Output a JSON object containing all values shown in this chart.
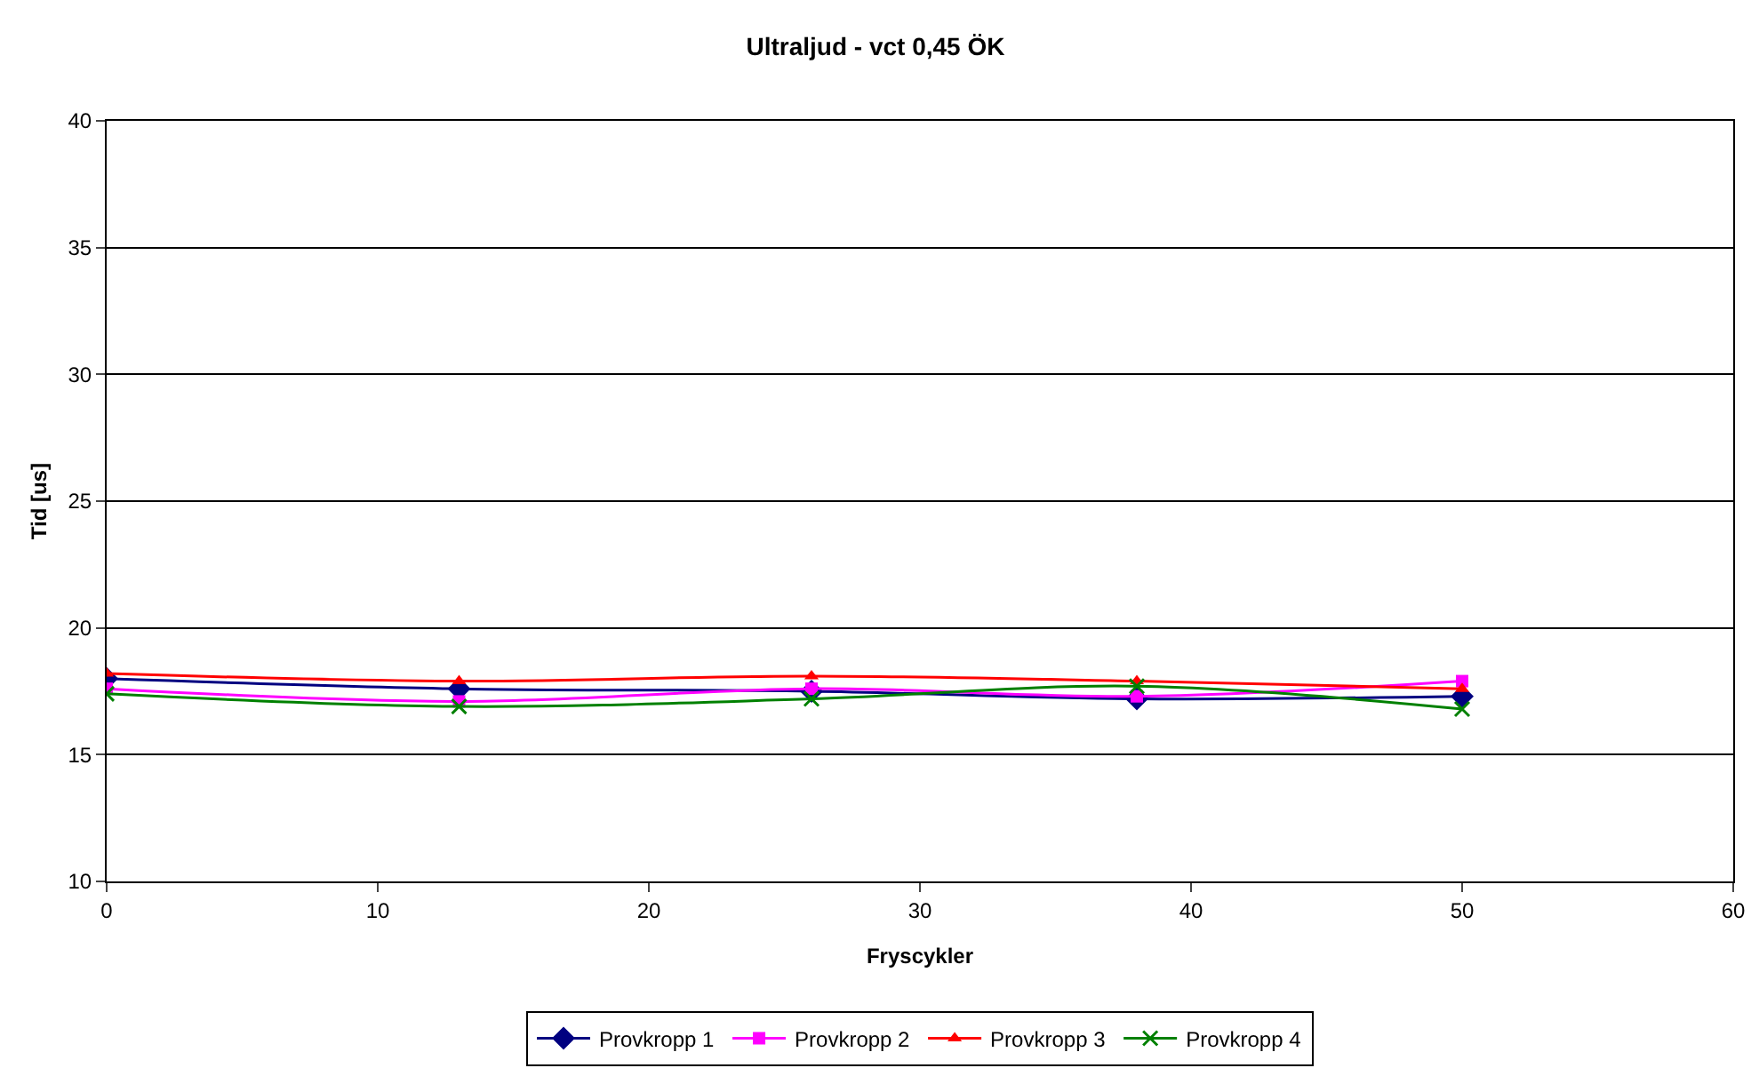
{
  "chart_data": {
    "type": "line",
    "title": "Ultraljud - vct 0,45 ÖK",
    "xlabel": "Fryscykler",
    "ylabel": "Tid [us]",
    "x": [
      0,
      13,
      26,
      38,
      50
    ],
    "series": [
      {
        "name": "Provkropp 1",
        "color": "#000080",
        "marker": "diamond",
        "values": [
          18.0,
          17.6,
          17.5,
          17.2,
          17.3
        ]
      },
      {
        "name": "Provkropp 2",
        "color": "#ff00ff",
        "marker": "square",
        "values": [
          17.6,
          17.1,
          17.6,
          17.3,
          17.9
        ]
      },
      {
        "name": "Provkropp 3",
        "color": "#ff0000",
        "marker": "triangle",
        "values": [
          18.2,
          17.9,
          18.1,
          17.9,
          17.6
        ]
      },
      {
        "name": "Provkropp 4",
        "color": "#008000",
        "marker": "cross",
        "values": [
          17.4,
          16.9,
          17.2,
          17.7,
          16.8
        ]
      }
    ],
    "xlim": [
      0,
      60
    ],
    "xticks": [
      0,
      10,
      20,
      30,
      40,
      50,
      60
    ],
    "ylim": [
      10,
      40
    ],
    "yticks": [
      10,
      15,
      20,
      25,
      30,
      35,
      40
    ],
    "grid": "y",
    "legend": "bottom"
  }
}
